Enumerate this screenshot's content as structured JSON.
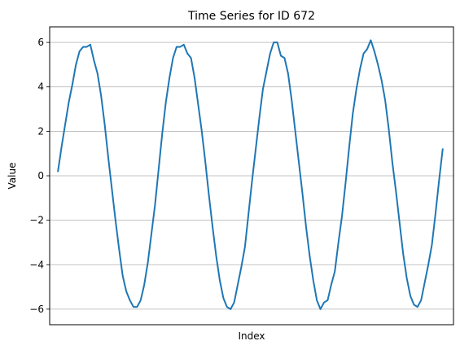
{
  "chart_data": {
    "type": "line",
    "title": "Time Series for ID 672",
    "xlabel": "Index",
    "ylabel": "Value",
    "ylim": [
      -6.7,
      6.7
    ],
    "xlim": [
      -3,
      143
    ],
    "yticks": [
      -6,
      -4,
      -2,
      0,
      2,
      4,
      6
    ],
    "xticks": [],
    "grid": "y-major",
    "series_color": "#1f77b4",
    "grid_color": "#b0b0b0",
    "series": [
      {
        "values": [
          0.2,
          1.3,
          2.3,
          3.3,
          4.1,
          5.0,
          5.6,
          5.8,
          5.8,
          5.9,
          5.2,
          4.6,
          3.6,
          2.3,
          0.8,
          -0.6,
          -2.0,
          -3.3,
          -4.5,
          -5.2,
          -5.6,
          -5.9,
          -5.9,
          -5.6,
          -4.9,
          -3.9,
          -2.6,
          -1.3,
          0.3,
          1.9,
          3.3,
          4.4,
          5.3,
          5.8,
          5.8,
          5.9,
          5.5,
          5.3,
          4.4,
          3.2,
          2.0,
          0.6,
          -0.9,
          -2.3,
          -3.6,
          -4.7,
          -5.5,
          -5.9,
          -6.0,
          -5.7,
          -4.9,
          -4.1,
          -3.2,
          -1.7,
          -0.2,
          1.2,
          2.6,
          3.9,
          4.7,
          5.5,
          6.0,
          6.0,
          5.4,
          5.3,
          4.6,
          3.4,
          2.0,
          0.6,
          -0.8,
          -2.3,
          -3.6,
          -4.7,
          -5.6,
          -6.0,
          -5.7,
          -5.6,
          -4.9,
          -4.3,
          -3.0,
          -1.8,
          -0.3,
          1.3,
          2.8,
          3.9,
          4.8,
          5.5,
          5.7,
          6.1,
          5.6,
          5.0,
          4.3,
          3.4,
          2.1,
          0.6,
          -0.7,
          -2.1,
          -3.5,
          -4.6,
          -5.4,
          -5.8,
          -5.9,
          -5.6,
          -4.8,
          -4.0,
          -3.1,
          -1.7,
          -0.2,
          1.2
        ],
        "x_step": 1.3
      }
    ]
  }
}
